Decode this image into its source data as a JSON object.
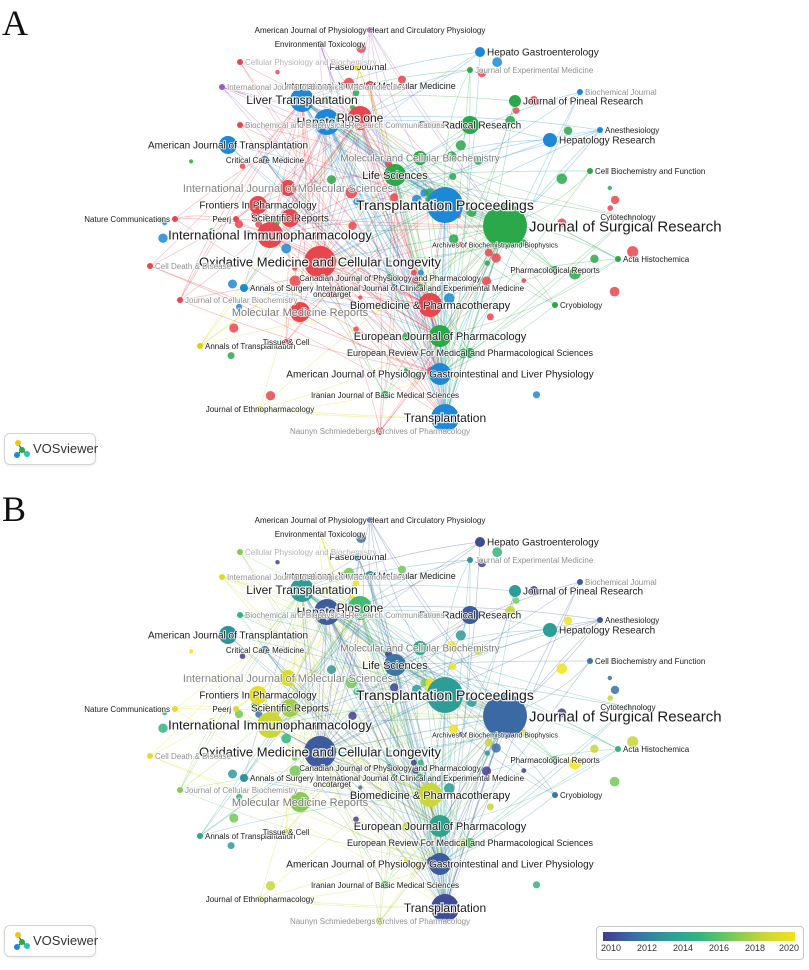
{
  "panels": {
    "a_letter": "A",
    "b_letter": "B"
  },
  "logo": {
    "label": "VOSviewer",
    "icon": "vosviewer-logo-icon"
  },
  "overlay_legend": {
    "ticks": [
      "2010",
      "2012",
      "2014",
      "2016",
      "2018",
      "2020"
    ],
    "colors": [
      "#3f3f8f",
      "#3b6ea6",
      "#2f9a9a",
      "#32b47f",
      "#74c85a",
      "#c7d63a",
      "#f3e21c"
    ]
  },
  "cluster_colors": {
    "red": "#e8454d",
    "green": "#2aa84a",
    "blue": "#1e88d6",
    "yellow": "#d6d400",
    "purple": "#9b59c9"
  },
  "journals": [
    {
      "label": "Journal of Surgical Research",
      "cluster": "green",
      "year": 0.15
    },
    {
      "label": "Transplantation Proceedings",
      "cluster": "blue",
      "year": 0.35
    },
    {
      "label": "Oxidative Medicine and Cellular Longevity",
      "cluster": "red",
      "year": 0.1
    },
    {
      "label": "International Immunopharmacology",
      "cluster": "red",
      "year": 0.85
    },
    {
      "label": "Liver Transplantation",
      "cluster": "blue",
      "year": 0.35
    },
    {
      "label": "Hepatology",
      "cluster": "blue",
      "year": 0.1
    },
    {
      "label": "Plos one",
      "cluster": "red",
      "year": 0.55
    },
    {
      "label": "Life Sciences",
      "cluster": "green",
      "year": 0.2
    },
    {
      "label": "Transplantation",
      "cluster": "blue",
      "year": 0.05
    },
    {
      "label": "Biomedicine & Pharmacotherapy",
      "cluster": "red",
      "year": 0.85
    },
    {
      "label": "European Journal of Pharmacology",
      "cluster": "green",
      "year": 0.4
    },
    {
      "label": "American Journal of Physiology Gastrointestinal and Liver Physiology",
      "cluster": "blue",
      "year": 0.1
    },
    {
      "label": "Molecular Medicine Reports",
      "cluster": "red",
      "year": 0.7
    },
    {
      "label": "Scientific Reports",
      "cluster": "red",
      "year": 0.75
    },
    {
      "label": "Frontiers In Pharmacology",
      "cluster": "red",
      "year": 0.95
    },
    {
      "label": "American Journal of Transplantation",
      "cluster": "blue",
      "year": 0.3
    },
    {
      "label": "Free Radical Research",
      "cluster": "green",
      "year": 0.1
    },
    {
      "label": "Journal of Pineal Research",
      "cluster": "green",
      "year": 0.35
    },
    {
      "label": "Hepatology Research",
      "cluster": "blue",
      "year": 0.35
    },
    {
      "label": "Hepato Gastroenterology",
      "cluster": "blue",
      "year": 0.05
    },
    {
      "label": "Faseb Journal",
      "cluster": "yellow",
      "year": 0.15
    },
    {
      "label": "International Journal of Molecular Medicine",
      "cluster": "red",
      "year": 0.35
    },
    {
      "label": "Environmental Toxicology",
      "cluster": "purple",
      "year": 0.9
    },
    {
      "label": "American Journal of Physiology Heart and Circulatory Physiology",
      "cluster": "purple",
      "year": 0.1
    },
    {
      "label": "Molecular and Cellular Biochemistry",
      "cluster": "green",
      "year": 0.45
    },
    {
      "label": "International Journal of Molecular Sciences",
      "cluster": "red",
      "year": 0.9
    },
    {
      "label": "Critical Care Medicine",
      "cluster": "blue",
      "year": 0.2
    },
    {
      "label": "Nature Communications",
      "cluster": "red",
      "year": 0.95
    },
    {
      "label": "Peerj",
      "cluster": "red",
      "year": 0.9
    },
    {
      "label": "Canadian Journal of Physiology and Pharmacology",
      "cluster": "green",
      "year": 0.3
    },
    {
      "label": "International Journal of Clinical and Experimental Medicine",
      "cluster": "green",
      "year": 0.5
    },
    {
      "label": "Archives of Biochemistry and Biophysics",
      "cluster": "green",
      "year": 0.3
    },
    {
      "label": "European Review For Medical and Pharmacological Sciences",
      "cluster": "green",
      "year": 0.6
    },
    {
      "label": "Iranian Journal of Basic Medical Sciences",
      "cluster": "green",
      "year": 0.6
    },
    {
      "label": "Annals of Surgery",
      "cluster": "blue",
      "year": 0.3
    },
    {
      "label": "Annals of Transplantation",
      "cluster": "yellow",
      "year": 0.4
    },
    {
      "label": "Tissue & Cell",
      "cluster": "red",
      "year": 0.9
    },
    {
      "label": "oncotarget",
      "cluster": "red",
      "year": 0.8
    },
    {
      "label": "Journal of Ethnopharmacology",
      "cluster": "yellow",
      "year": 0.85
    },
    {
      "label": "Naunyn Schmiedebergs Archives of Pharmacology",
      "cluster": "red",
      "year": 0.8
    },
    {
      "label": "Cell Biochemistry and Function",
      "cluster": "green",
      "year": 0.2
    },
    {
      "label": "Anesthesiology",
      "cluster": "blue",
      "year": 0.1
    },
    {
      "label": "Cytotechnology",
      "cluster": "green",
      "year": 0.3
    },
    {
      "label": "Pharmacological Reports",
      "cluster": "green",
      "year": 0.6
    },
    {
      "label": "Acta Histochemica",
      "cluster": "green",
      "year": 0.5
    },
    {
      "label": "Cryobiology",
      "cluster": "green",
      "year": 0.2
    },
    {
      "label": "Biochemical Journal",
      "cluster": "blue",
      "year": 0.1
    },
    {
      "label": "International Journal of Biological Macromolecules",
      "cluster": "purple",
      "year": 0.9
    },
    {
      "label": "Journal of Experimental Medicine",
      "cluster": "green",
      "year": 0.3
    },
    {
      "label": "Cellular Physiology and Biochemistry",
      "cluster": "red",
      "year": 0.7
    },
    {
      "label": "Cell Death & Disease",
      "cluster": "red",
      "year": 0.95
    },
    {
      "label": "Biochemical and Biophysical Research Communications",
      "cluster": "red",
      "year": 0.5
    },
    {
      "label": "Journal of Cellular Biochemistry",
      "cluster": "red",
      "year": 0.7
    }
  ]
}
